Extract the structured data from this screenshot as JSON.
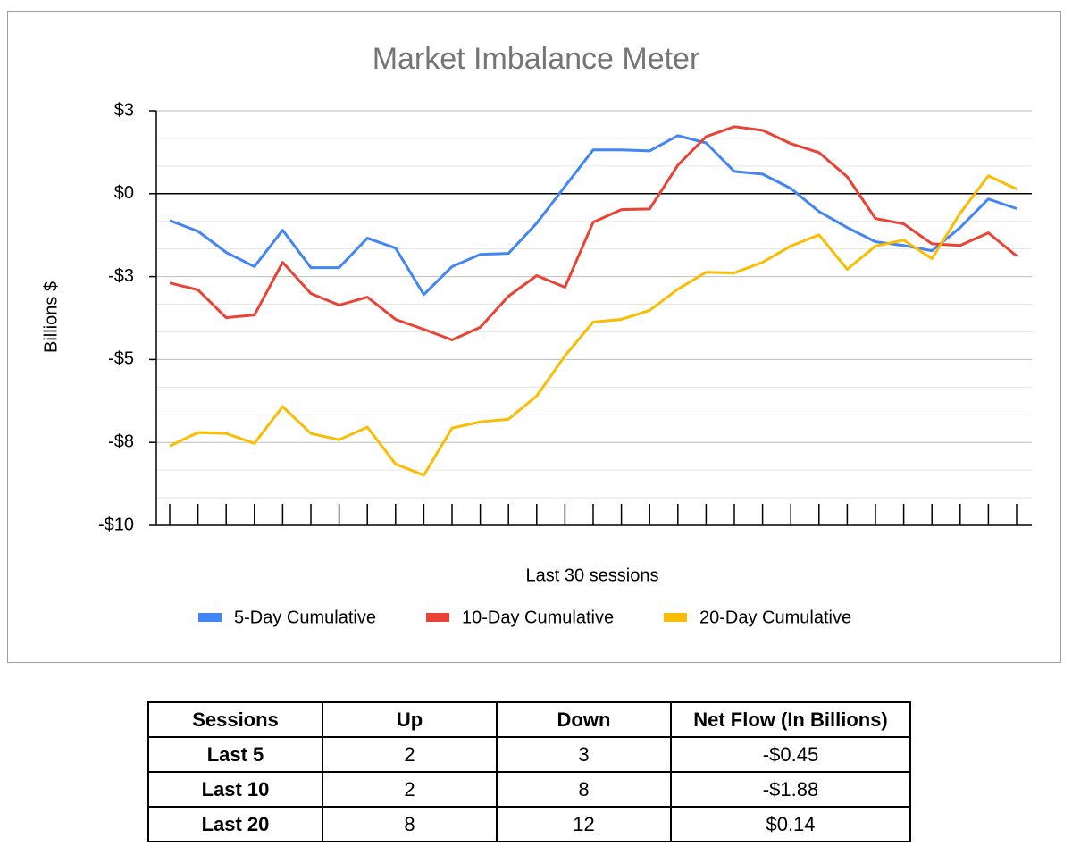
{
  "chart_data": {
    "type": "line",
    "title": "Market Imbalance Meter",
    "xlabel": "Last 30 sessions",
    "ylabel": "Billions $",
    "categories": [
      null,
      null,
      null,
      null,
      null,
      null,
      null,
      null,
      null,
      null,
      null,
      null,
      null,
      null,
      null,
      null,
      null,
      null,
      null,
      null,
      null,
      null,
      null,
      null,
      null,
      null,
      null,
      null,
      null,
      null,
      null
    ],
    "series": [
      {
        "name": "5-Day Cumulative",
        "color": "#4285f4",
        "values": [
          -0.81,
          -1.13,
          -1.77,
          -2.2,
          -1.1,
          -2.23,
          -2.23,
          -1.34,
          -1.64,
          -3.04,
          -2.2,
          -1.83,
          -1.8,
          -0.89,
          0.22,
          1.32,
          1.32,
          1.29,
          1.75,
          1.53,
          0.67,
          0.59,
          0.16,
          -0.54,
          -1.02,
          -1.45,
          -1.56,
          -1.72,
          -1.02,
          -0.16,
          -0.45
        ]
      },
      {
        "name": "10-Day Cumulative",
        "color": "#ea4335",
        "values": [
          -2.69,
          -2.9,
          -3.74,
          -3.66,
          -2.07,
          -3.01,
          -3.36,
          -3.12,
          -3.79,
          -4.09,
          -4.41,
          -4.03,
          -3.09,
          -2.47,
          -2.82,
          -0.86,
          -0.48,
          -0.46,
          0.86,
          1.72,
          2.02,
          1.91,
          1.51,
          1.24,
          0.51,
          -0.75,
          -0.91,
          -1.51,
          -1.56,
          -1.18,
          -1.88
        ]
      },
      {
        "name": "20-Day Cumulative",
        "color": "#fbbc04",
        "values": [
          -7.61,
          -7.2,
          -7.23,
          -7.53,
          -6.42,
          -7.23,
          -7.42,
          -7.04,
          -8.15,
          -8.49,
          -7.07,
          -6.88,
          -6.8,
          -6.1,
          -4.89,
          -3.87,
          -3.79,
          -3.52,
          -2.88,
          -2.37,
          -2.39,
          -2.07,
          -1.58,
          -1.24,
          -2.28,
          -1.58,
          -1.4,
          -1.96,
          -0.59,
          0.54,
          0.14
        ]
      }
    ],
    "ylim": [
      -10,
      2.5
    ],
    "yticks": [
      {
        "value": 2.5,
        "label": "$3"
      },
      {
        "value": 0,
        "label": "$0"
      },
      {
        "value": -2.5,
        "label": "-$3"
      },
      {
        "value": -5,
        "label": "-$5"
      },
      {
        "value": -7.5,
        "label": "-$8"
      },
      {
        "value": -10,
        "label": "-$10"
      }
    ],
    "grid": true,
    "legend": "bottom"
  },
  "table": {
    "header": [
      "Sessions",
      "Up",
      "Down",
      "Net Flow (In Billions)"
    ],
    "rows": [
      [
        "Last 5",
        "2",
        "3",
        "-$0.45"
      ],
      [
        "Last 10",
        "2",
        "8",
        "-$1.88"
      ],
      [
        "Last 20",
        "8",
        "12",
        "$0.14"
      ]
    ]
  }
}
